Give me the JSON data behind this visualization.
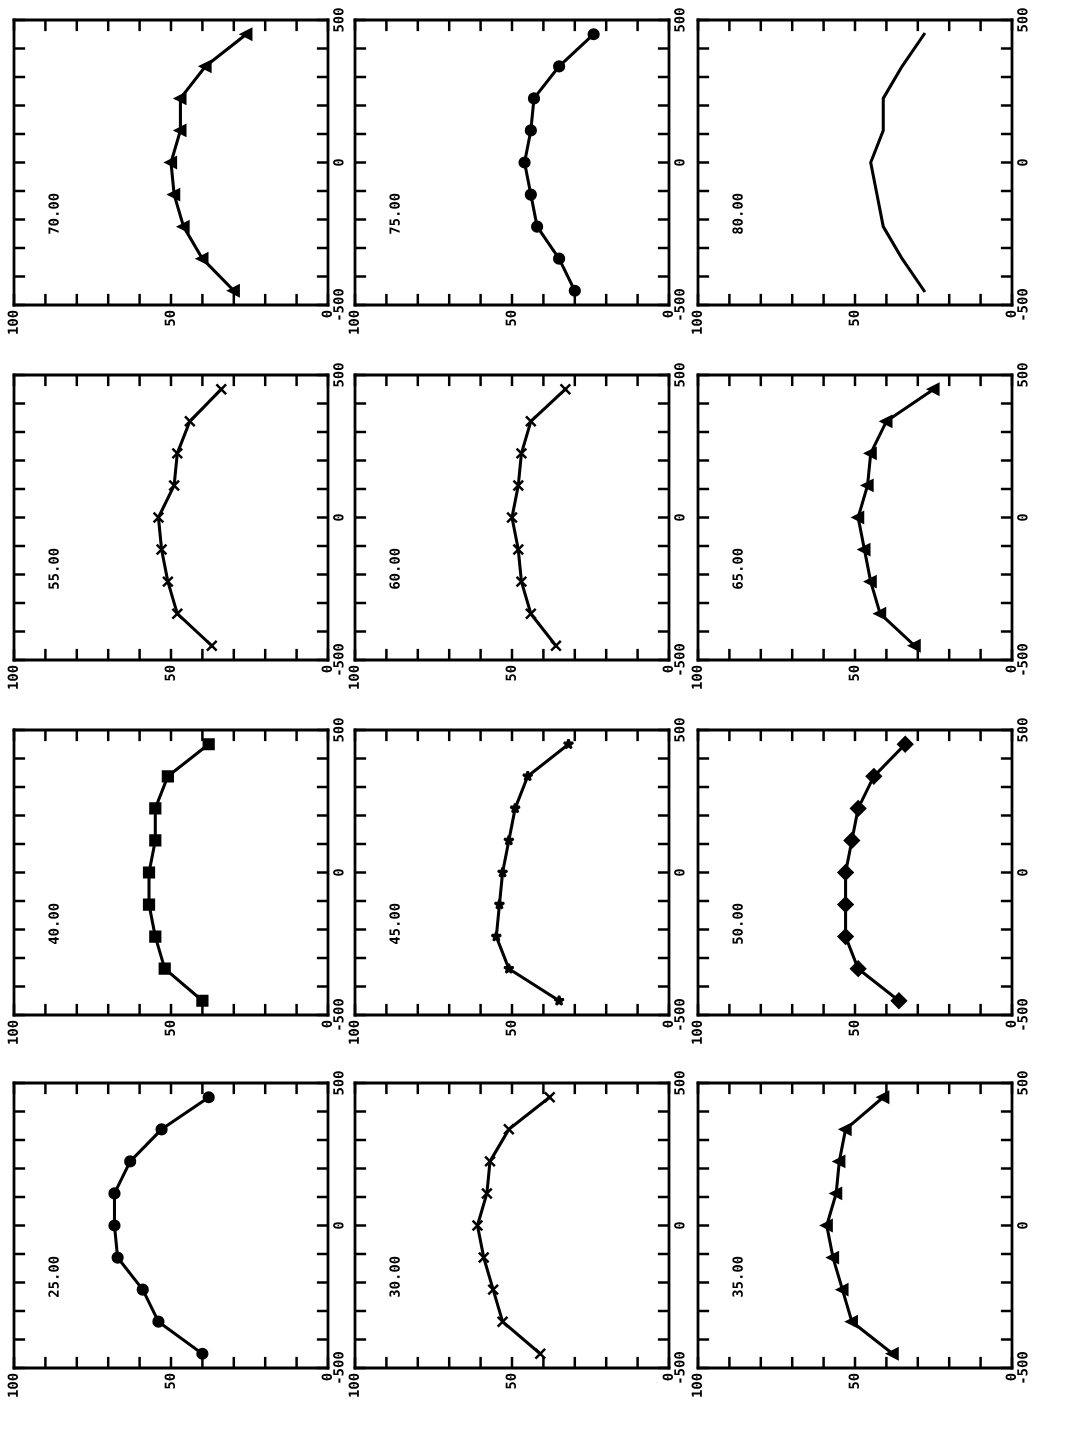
{
  "chart_data": [
    {
      "type": "line",
      "title": "25.00",
      "marker": "circle",
      "xlim": [
        100,
        0
      ],
      "xticks": [
        100,
        {
          "value": 90,
          "label": null
        },
        {
          "value": 80,
          "label": null
        },
        {
          "value": 70,
          "label": null
        },
        {
          "value": 60,
          "label": null
        },
        50,
        {
          "value": 40,
          "label": null
        },
        {
          "value": 30,
          "label": null
        },
        {
          "value": 20,
          "label": null
        },
        {
          "value": 10,
          "label": null
        },
        0
      ],
      "ylim": [
        -500,
        500
      ],
      "yticks": [
        -500,
        {
          "value": -400,
          "label": null
        },
        {
          "value": -300,
          "label": null
        },
        {
          "value": -200,
          "label": null
        },
        {
          "value": -100,
          "label": null
        },
        0,
        {
          "value": 100,
          "label": null
        },
        {
          "value": 200,
          "label": null
        },
        {
          "value": 300,
          "label": null
        },
        {
          "value": 400,
          "label": null
        },
        500
      ],
      "series": [
        {
          "color": "#000000",
          "x": [
            40,
            54,
            59,
            67,
            68,
            68,
            63,
            53,
            38
          ],
          "values": [
            -450,
            -337.5,
            -225,
            -112.5,
            0,
            112.5,
            225,
            337.5,
            450
          ]
        }
      ]
    },
    {
      "type": "line",
      "title": "30.00",
      "marker": "cross",
      "xlim": [
        100,
        0
      ],
      "xticks": [
        100,
        {
          "value": 90,
          "label": null
        },
        {
          "value": 80,
          "label": null
        },
        {
          "value": 70,
          "label": null
        },
        {
          "value": 60,
          "label": null
        },
        50,
        {
          "value": 40,
          "label": null
        },
        {
          "value": 30,
          "label": null
        },
        {
          "value": 20,
          "label": null
        },
        {
          "value": 10,
          "label": null
        },
        0
      ],
      "ylim": [
        -500,
        500
      ],
      "yticks": [
        -500,
        {
          "value": -400,
          "label": null
        },
        {
          "value": -300,
          "label": null
        },
        {
          "value": -200,
          "label": null
        },
        {
          "value": -100,
          "label": null
        },
        0,
        {
          "value": 100,
          "label": null
        },
        {
          "value": 200,
          "label": null
        },
        {
          "value": 300,
          "label": null
        },
        {
          "value": 400,
          "label": null
        },
        500
      ],
      "series": [
        {
          "color": "#000000",
          "x": [
            41,
            53,
            56,
            59,
            61,
            58,
            57,
            51,
            38
          ],
          "values": [
            -450,
            -337.5,
            -225,
            -112.5,
            0,
            112.5,
            225,
            337.5,
            450
          ]
        }
      ]
    },
    {
      "type": "line",
      "title": "35.00",
      "marker": "triangle",
      "xlim": [
        100,
        0
      ],
      "xticks": [
        100,
        {
          "value": 90,
          "label": null
        },
        {
          "value": 80,
          "label": null
        },
        {
          "value": 70,
          "label": null
        },
        {
          "value": 60,
          "label": null
        },
        50,
        {
          "value": 40,
          "label": null
        },
        {
          "value": 30,
          "label": null
        },
        {
          "value": 20,
          "label": null
        },
        {
          "value": 10,
          "label": null
        },
        0
      ],
      "ylim": [
        -500,
        500
      ],
      "yticks": [
        -500,
        {
          "value": -400,
          "label": null
        },
        {
          "value": -300,
          "label": null
        },
        {
          "value": -200,
          "label": null
        },
        {
          "value": -100,
          "label": null
        },
        0,
        {
          "value": 100,
          "label": null
        },
        {
          "value": 200,
          "label": null
        },
        {
          "value": 300,
          "label": null
        },
        {
          "value": 400,
          "label": null
        },
        500
      ],
      "series": [
        {
          "color": "#000000",
          "x": [
            38,
            51,
            54,
            57,
            59,
            56,
            55,
            53,
            41
          ],
          "values": [
            -450,
            -337.5,
            -225,
            -112.5,
            0,
            112.5,
            225,
            337.5,
            450
          ]
        }
      ]
    },
    {
      "type": "line",
      "title": "40.00",
      "marker": "square",
      "xlim": [
        100,
        0
      ],
      "xticks": [
        100,
        {
          "value": 90,
          "label": null
        },
        {
          "value": 80,
          "label": null
        },
        {
          "value": 70,
          "label": null
        },
        {
          "value": 60,
          "label": null
        },
        50,
        {
          "value": 40,
          "label": null
        },
        {
          "value": 30,
          "label": null
        },
        {
          "value": 20,
          "label": null
        },
        {
          "value": 10,
          "label": null
        },
        0
      ],
      "ylim": [
        -500,
        500
      ],
      "yticks": [
        -500,
        {
          "value": -400,
          "label": null
        },
        {
          "value": -300,
          "label": null
        },
        {
          "value": -200,
          "label": null
        },
        {
          "value": -100,
          "label": null
        },
        0,
        {
          "value": 100,
          "label": null
        },
        {
          "value": 200,
          "label": null
        },
        {
          "value": 300,
          "label": null
        },
        {
          "value": 400,
          "label": null
        },
        500
      ],
      "series": [
        {
          "color": "#000000",
          "x": [
            40,
            52,
            55,
            57,
            57,
            55,
            55,
            51,
            38
          ],
          "values": [
            -450,
            -337.5,
            -225,
            -112.5,
            0,
            112.5,
            225,
            337.5,
            450
          ]
        }
      ]
    },
    {
      "type": "line",
      "title": "45.00",
      "marker": "star",
      "xlim": [
        100,
        0
      ],
      "xticks": [
        100,
        {
          "value": 90,
          "label": null
        },
        {
          "value": 80,
          "label": null
        },
        {
          "value": 70,
          "label": null
        },
        {
          "value": 60,
          "label": null
        },
        50,
        {
          "value": 40,
          "label": null
        },
        {
          "value": 30,
          "label": null
        },
        {
          "value": 20,
          "label": null
        },
        {
          "value": 10,
          "label": null
        },
        0
      ],
      "ylim": [
        -500,
        500
      ],
      "yticks": [
        -500,
        {
          "value": -400,
          "label": null
        },
        {
          "value": -300,
          "label": null
        },
        {
          "value": -200,
          "label": null
        },
        {
          "value": -100,
          "label": null
        },
        0,
        {
          "value": 100,
          "label": null
        },
        {
          "value": 200,
          "label": null
        },
        {
          "value": 300,
          "label": null
        },
        {
          "value": 400,
          "label": null
        },
        500
      ],
      "series": [
        {
          "color": "#000000",
          "x": [
            35,
            51,
            55,
            54,
            53,
            51,
            49,
            45,
            32
          ],
          "values": [
            -450,
            -337.5,
            -225,
            -112.5,
            0,
            112.5,
            225,
            337.5,
            450
          ]
        }
      ]
    },
    {
      "type": "line",
      "title": "50.00",
      "marker": "diamond",
      "xlim": [
        100,
        0
      ],
      "xticks": [
        100,
        {
          "value": 90,
          "label": null
        },
        {
          "value": 80,
          "label": null
        },
        {
          "value": 70,
          "label": null
        },
        {
          "value": 60,
          "label": null
        },
        50,
        {
          "value": 40,
          "label": null
        },
        {
          "value": 30,
          "label": null
        },
        {
          "value": 20,
          "label": null
        },
        {
          "value": 10,
          "label": null
        },
        0
      ],
      "ylim": [
        -500,
        500
      ],
      "yticks": [
        -500,
        {
          "value": -400,
          "label": null
        },
        {
          "value": -300,
          "label": null
        },
        {
          "value": -200,
          "label": null
        },
        {
          "value": -100,
          "label": null
        },
        0,
        {
          "value": 100,
          "label": null
        },
        {
          "value": 200,
          "label": null
        },
        {
          "value": 300,
          "label": null
        },
        {
          "value": 400,
          "label": null
        },
        500
      ],
      "series": [
        {
          "color": "#000000",
          "x": [
            36,
            49,
            53,
            53,
            53,
            51,
            49,
            44,
            34
          ],
          "values": [
            -450,
            -337.5,
            -225,
            -112.5,
            0,
            112.5,
            225,
            337.5,
            450
          ]
        }
      ]
    },
    {
      "type": "line",
      "title": "55.00",
      "marker": "cross",
      "xlim": [
        100,
        0
      ],
      "xticks": [
        100,
        {
          "value": 90,
          "label": null
        },
        {
          "value": 80,
          "label": null
        },
        {
          "value": 70,
          "label": null
        },
        {
          "value": 60,
          "label": null
        },
        50,
        {
          "value": 40,
          "label": null
        },
        {
          "value": 30,
          "label": null
        },
        {
          "value": 20,
          "label": null
        },
        {
          "value": 10,
          "label": null
        },
        0
      ],
      "ylim": [
        -500,
        500
      ],
      "yticks": [
        -500,
        {
          "value": -400,
          "label": null
        },
        {
          "value": -300,
          "label": null
        },
        {
          "value": -200,
          "label": null
        },
        {
          "value": -100,
          "label": null
        },
        0,
        {
          "value": 100,
          "label": null
        },
        {
          "value": 200,
          "label": null
        },
        {
          "value": 300,
          "label": null
        },
        {
          "value": 400,
          "label": null
        },
        500
      ],
      "series": [
        {
          "color": "#000000",
          "x": [
            37,
            48,
            51,
            53,
            54,
            49,
            48,
            44,
            34
          ],
          "values": [
            -450,
            -337.5,
            -225,
            -112.5,
            0,
            112.5,
            225,
            337.5,
            450
          ]
        }
      ]
    },
    {
      "type": "line",
      "title": "60.00",
      "marker": "cross",
      "xlim": [
        100,
        0
      ],
      "xticks": [
        100,
        {
          "value": 90,
          "label": null
        },
        {
          "value": 80,
          "label": null
        },
        {
          "value": 70,
          "label": null
        },
        {
          "value": 60,
          "label": null
        },
        50,
        {
          "value": 40,
          "label": null
        },
        {
          "value": 30,
          "label": null
        },
        {
          "value": 20,
          "label": null
        },
        {
          "value": 10,
          "label": null
        },
        0
      ],
      "ylim": [
        -500,
        500
      ],
      "yticks": [
        -500,
        {
          "value": -400,
          "label": null
        },
        {
          "value": -300,
          "label": null
        },
        {
          "value": -200,
          "label": null
        },
        {
          "value": -100,
          "label": null
        },
        0,
        {
          "value": 100,
          "label": null
        },
        {
          "value": 200,
          "label": null
        },
        {
          "value": 300,
          "label": null
        },
        {
          "value": 400,
          "label": null
        },
        500
      ],
      "series": [
        {
          "color": "#000000",
          "x": [
            36,
            44,
            47,
            48,
            50,
            48,
            47,
            44,
            33
          ],
          "values": [
            -450,
            -337.5,
            -225,
            -112.5,
            0,
            112.5,
            225,
            337.5,
            450
          ]
        }
      ]
    },
    {
      "type": "line",
      "title": "65.00",
      "marker": "triangle",
      "xlim": [
        100,
        0
      ],
      "xticks": [
        100,
        {
          "value": 90,
          "label": null
        },
        {
          "value": 80,
          "label": null
        },
        {
          "value": 70,
          "label": null
        },
        {
          "value": 60,
          "label": null
        },
        50,
        {
          "value": 40,
          "label": null
        },
        {
          "value": 30,
          "label": null
        },
        {
          "value": 20,
          "label": null
        },
        {
          "value": 10,
          "label": null
        },
        0
      ],
      "ylim": [
        -500,
        500
      ],
      "yticks": [
        -500,
        {
          "value": -400,
          "label": null
        },
        {
          "value": -300,
          "label": null
        },
        {
          "value": -200,
          "label": null
        },
        {
          "value": -100,
          "label": null
        },
        0,
        {
          "value": 100,
          "label": null
        },
        {
          "value": 200,
          "label": null
        },
        {
          "value": 300,
          "label": null
        },
        {
          "value": 400,
          "label": null
        },
        500
      ],
      "series": [
        {
          "color": "#000000",
          "x": [
            31,
            42,
            45,
            47,
            49,
            46,
            45,
            40,
            25
          ],
          "values": [
            -450,
            -337.5,
            -225,
            -112.5,
            0,
            112.5,
            225,
            337.5,
            450
          ]
        }
      ]
    },
    {
      "type": "line",
      "title": "70.00",
      "marker": "triangle",
      "xlim": [
        100,
        0
      ],
      "xticks": [
        100,
        {
          "value": 90,
          "label": null
        },
        {
          "value": 80,
          "label": null
        },
        {
          "value": 70,
          "label": null
        },
        {
          "value": 60,
          "label": null
        },
        50,
        {
          "value": 40,
          "label": null
        },
        {
          "value": 30,
          "label": null
        },
        {
          "value": 20,
          "label": null
        },
        {
          "value": 10,
          "label": null
        },
        0
      ],
      "ylim": [
        -500,
        500
      ],
      "yticks": [
        -500,
        {
          "value": -400,
          "label": null
        },
        {
          "value": -300,
          "label": null
        },
        {
          "value": -200,
          "label": null
        },
        {
          "value": -100,
          "label": null
        },
        0,
        {
          "value": 100,
          "label": null
        },
        {
          "value": 200,
          "label": null
        },
        {
          "value": 300,
          "label": null
        },
        {
          "value": 400,
          "label": null
        },
        500
      ],
      "series": [
        {
          "color": "#000000",
          "x": [
            30,
            40,
            46,
            49,
            50,
            47,
            47,
            39,
            26
          ],
          "values": [
            -450,
            -337.5,
            -225,
            -112.5,
            0,
            112.5,
            225,
            337.5,
            450
          ]
        }
      ]
    },
    {
      "type": "line",
      "title": "75.00",
      "marker": "circle",
      "xlim": [
        100,
        0
      ],
      "xticks": [
        100,
        {
          "value": 90,
          "label": null
        },
        {
          "value": 80,
          "label": null
        },
        {
          "value": 70,
          "label": null
        },
        {
          "value": 60,
          "label": null
        },
        50,
        {
          "value": 40,
          "label": null
        },
        {
          "value": 30,
          "label": null
        },
        {
          "value": 20,
          "label": null
        },
        {
          "value": 10,
          "label": null
        },
        0
      ],
      "ylim": [
        -500,
        500
      ],
      "yticks": [
        -500,
        {
          "value": -400,
          "label": null
        },
        {
          "value": -300,
          "label": null
        },
        {
          "value": -200,
          "label": null
        },
        {
          "value": -100,
          "label": null
        },
        0,
        {
          "value": 100,
          "label": null
        },
        {
          "value": 200,
          "label": null
        },
        {
          "value": 300,
          "label": null
        },
        {
          "value": 400,
          "label": null
        },
        500
      ],
      "series": [
        {
          "color": "#000000",
          "x": [
            30,
            35,
            42,
            44,
            46,
            44,
            43,
            35,
            24
          ],
          "values": [
            -450,
            -337.5,
            -225,
            -112.5,
            0,
            112.5,
            225,
            337.5,
            450
          ]
        }
      ]
    },
    {
      "type": "line",
      "title": "80.00",
      "marker": "none",
      "xlim": [
        100,
        0
      ],
      "xticks": [
        100,
        {
          "value": 90,
          "label": null
        },
        {
          "value": 80,
          "label": null
        },
        {
          "value": 70,
          "label": null
        },
        {
          "value": 60,
          "label": null
        },
        50,
        {
          "value": 40,
          "label": null
        },
        {
          "value": 30,
          "label": null
        },
        {
          "value": 20,
          "label": null
        },
        {
          "value": 10,
          "label": null
        },
        0
      ],
      "ylim": [
        -500,
        500
      ],
      "yticks": [
        -500,
        {
          "value": -400,
          "label": null
        },
        {
          "value": -300,
          "label": null
        },
        {
          "value": -200,
          "label": null
        },
        {
          "value": -100,
          "label": null
        },
        0,
        {
          "value": 100,
          "label": null
        },
        {
          "value": 200,
          "label": null
        },
        {
          "value": 300,
          "label": null
        },
        {
          "value": 400,
          "label": null
        },
        500
      ],
      "series": [
        {
          "color": "#000000",
          "x": [
            28,
            35,
            41,
            43,
            45,
            41,
            41,
            35,
            28
          ],
          "values": [
            -450,
            -337.5,
            -225,
            -112.5,
            0,
            112.5,
            225,
            337.5,
            450
          ]
        }
      ]
    }
  ]
}
